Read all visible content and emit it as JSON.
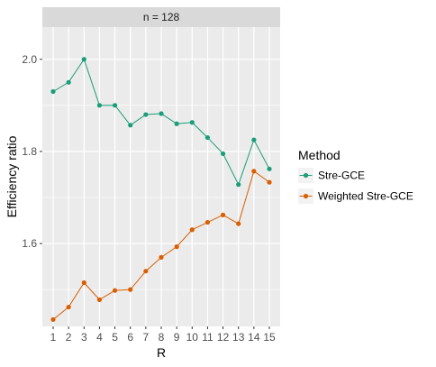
{
  "chart_data": {
    "type": "line",
    "facet_label": "n = 128",
    "xlabel": "R",
    "ylabel": "Efficiency ratio",
    "categories": [
      1,
      2,
      3,
      4,
      5,
      6,
      7,
      8,
      9,
      10,
      11,
      12,
      13,
      14,
      15
    ],
    "ylim": [
      1.42,
      2.07
    ],
    "yticks": [
      1.6,
      1.8,
      2.0
    ],
    "ytick_labels": [
      "1.6",
      "1.8",
      "2.0"
    ],
    "grid": true,
    "legend": {
      "title": "Method",
      "placement": "right"
    },
    "series": [
      {
        "name": "Stre-GCE",
        "color": "#1b9e77",
        "values": [
          1.93,
          1.95,
          2.0,
          1.9,
          1.9,
          1.857,
          1.88,
          1.882,
          1.86,
          1.863,
          1.83,
          1.795,
          1.728,
          1.825,
          1.762
        ]
      },
      {
        "name": "Weighted Stre-GCE",
        "color": "#d95f02",
        "values": [
          1.435,
          1.462,
          1.515,
          1.478,
          1.498,
          1.5,
          1.54,
          1.57,
          1.593,
          1.63,
          1.646,
          1.662,
          1.643,
          1.757,
          1.733
        ]
      }
    ]
  }
}
